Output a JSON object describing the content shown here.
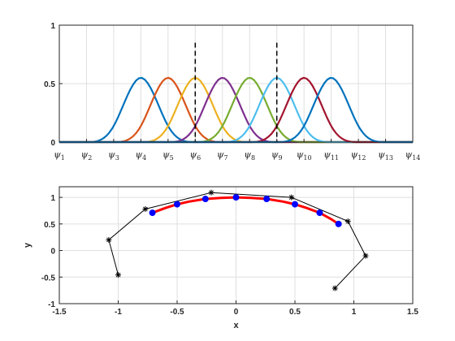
{
  "chart_data": [
    {
      "type": "line",
      "xlim": [
        0,
        13
      ],
      "ylim": [
        0,
        1
      ],
      "yticks": [
        {
          "value": 0,
          "label": "0"
        },
        {
          "value": 0.5,
          "label": "0.5"
        },
        {
          "value": 1,
          "label": "1"
        }
      ],
      "xtick_labels": [
        "ψ1",
        "ψ2",
        "ψ3",
        "ψ4",
        "ψ5",
        "ψ6",
        "ψ7",
        "ψ8",
        "ψ9",
        "ψ10",
        "ψ11",
        "ψ12",
        "ψ13",
        "ψ14"
      ],
      "xtick_prefix": "ψ",
      "xtick_subscripts": [
        "1",
        "2",
        "3",
        "4",
        "5",
        "6",
        "7",
        "8",
        "9",
        "10",
        "11",
        "12",
        "13",
        "14"
      ],
      "grid": true,
      "dashed_vertical_lines_x": [
        5,
        8
      ],
      "basis_center_x": [
        3,
        4,
        5,
        6,
        7,
        8,
        9,
        10
      ],
      "basis_peak": 0.55,
      "basis_support": [
        -2,
        2
      ],
      "series_colors": [
        "#0072BD",
        "#D95319",
        "#EDB120",
        "#7E2F8E",
        "#77AC30",
        "#4DBEEE",
        "#A2142F",
        "#0072BD"
      ]
    },
    {
      "type": "line",
      "xlabel": "x",
      "ylabel": "y",
      "xlim": [
        -1.5,
        1.5
      ],
      "ylim": [
        -1,
        1.2
      ],
      "xticks": [
        {
          "value": -1.5,
          "label": "-1.5"
        },
        {
          "value": -1,
          "label": "-1"
        },
        {
          "value": -0.5,
          "label": "-0.5"
        },
        {
          "value": 0,
          "label": "0"
        },
        {
          "value": 0.5,
          "label": "0.5"
        },
        {
          "value": 1,
          "label": "1"
        },
        {
          "value": 1.5,
          "label": "1.5"
        }
      ],
      "yticks": [
        {
          "value": -1,
          "label": "-1"
        },
        {
          "value": -0.5,
          "label": "-0.5"
        },
        {
          "value": 0,
          "label": "0"
        },
        {
          "value": 0.5,
          "label": "0.5"
        },
        {
          "value": 1,
          "label": "1"
        }
      ],
      "grid": true,
      "control_polygon": {
        "color": "#000000",
        "points": [
          [
            -1.0,
            -0.46
          ],
          [
            -1.08,
            0.2
          ],
          [
            -0.77,
            0.78
          ],
          [
            -0.21,
            1.09
          ],
          [
            0.47,
            1.0
          ],
          [
            0.95,
            0.55
          ],
          [
            1.1,
            -0.1
          ],
          [
            0.84,
            -0.71
          ]
        ]
      },
      "curve": {
        "color": "#FF0000",
        "points": [
          [
            -0.71,
            0.71
          ],
          [
            -0.6,
            0.8
          ],
          [
            -0.5,
            0.87
          ],
          [
            -0.4,
            0.92
          ],
          [
            -0.26,
            0.97
          ],
          [
            -0.13,
            0.99
          ],
          [
            0.0,
            1.0
          ],
          [
            0.13,
            0.99
          ],
          [
            0.26,
            0.97
          ],
          [
            0.4,
            0.92
          ],
          [
            0.5,
            0.87
          ],
          [
            0.6,
            0.8
          ],
          [
            0.71,
            0.71
          ],
          [
            0.8,
            0.6
          ],
          [
            0.87,
            0.5
          ]
        ]
      },
      "sample_points": {
        "color": "#0000FF",
        "points": [
          [
            -0.71,
            0.71
          ],
          [
            -0.5,
            0.87
          ],
          [
            -0.26,
            0.97
          ],
          [
            0.0,
            1.0
          ],
          [
            0.26,
            0.97
          ],
          [
            0.5,
            0.87
          ],
          [
            0.71,
            0.71
          ],
          [
            0.87,
            0.5
          ]
        ]
      }
    }
  ]
}
